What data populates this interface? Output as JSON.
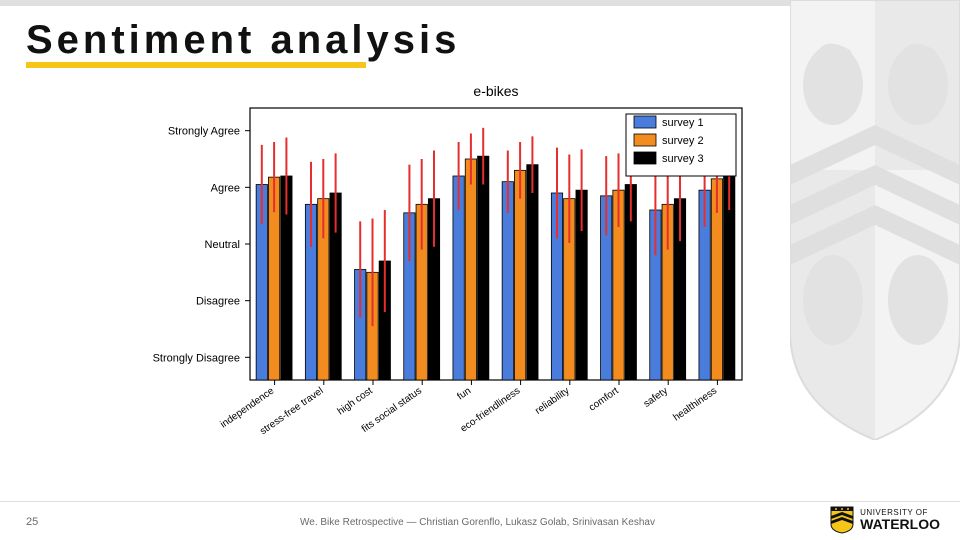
{
  "slide": {
    "title": "Sentiment analysis",
    "page_number": "25",
    "footer": "We. Bike Retrospective — Christian Gorenflo, Lukasz Golab, Srinivasan Keshav"
  },
  "logo": {
    "line1": "UNIVERSITY OF",
    "line2": "WATERLOO",
    "shield_gold": "#f5c518",
    "shield_stroke": "#111111"
  },
  "chart": {
    "type": "bar",
    "title": "e-bikes",
    "title_fontsize": 14,
    "plot_bg": "#ffffff",
    "border_color": "#000000",
    "legend": {
      "labels": [
        "survey 1",
        "survey 2",
        "survey 3"
      ],
      "colors": [
        "#4a7ddb",
        "#f28c1e",
        "#000000"
      ],
      "border": "#000000",
      "pos": "top-right"
    },
    "y": {
      "ticks": [
        1,
        2,
        3,
        4,
        5
      ],
      "labels": [
        "Strongly Disagree",
        "Disagree",
        "Neutral",
        "Agree",
        "Strongly Agree"
      ],
      "fontsize": 11,
      "ylim": [
        0.6,
        5.4
      ]
    },
    "x": {
      "categories": [
        "independence",
        "stress-free travel",
        "high cost",
        "fits social status",
        "fun",
        "eco-friendliness",
        "reliability",
        "comfort",
        "safety",
        "healthiness"
      ],
      "rotation": 35,
      "fontsize": 10
    },
    "bar_group_width": 0.75,
    "bar_edge": "#000000",
    "error_color": "#e62e2e",
    "error_width": 2,
    "data": [
      {
        "y": [
          4.05,
          4.18,
          4.2
        ],
        "err": [
          0.7,
          0.62,
          0.68
        ]
      },
      {
        "y": [
          3.7,
          3.8,
          3.9
        ],
        "err": [
          0.75,
          0.7,
          0.7
        ]
      },
      {
        "y": [
          2.55,
          2.5,
          2.7
        ],
        "err": [
          0.85,
          0.95,
          0.9
        ]
      },
      {
        "y": [
          3.55,
          3.7,
          3.8
        ],
        "err": [
          0.85,
          0.8,
          0.85
        ]
      },
      {
        "y": [
          4.2,
          4.5,
          4.55
        ],
        "err": [
          0.6,
          0.45,
          0.5
        ]
      },
      {
        "y": [
          4.1,
          4.3,
          4.4
        ],
        "err": [
          0.55,
          0.5,
          0.5
        ]
      },
      {
        "y": [
          3.9,
          3.8,
          3.95
        ],
        "err": [
          0.8,
          0.78,
          0.72
        ]
      },
      {
        "y": [
          3.85,
          3.95,
          4.05
        ],
        "err": [
          0.7,
          0.65,
          0.65
        ]
      },
      {
        "y": [
          3.6,
          3.7,
          3.8
        ],
        "err": [
          0.8,
          0.8,
          0.75
        ]
      },
      {
        "y": [
          3.95,
          4.15,
          4.2
        ],
        "err": [
          0.65,
          0.6,
          0.6
        ]
      }
    ]
  }
}
